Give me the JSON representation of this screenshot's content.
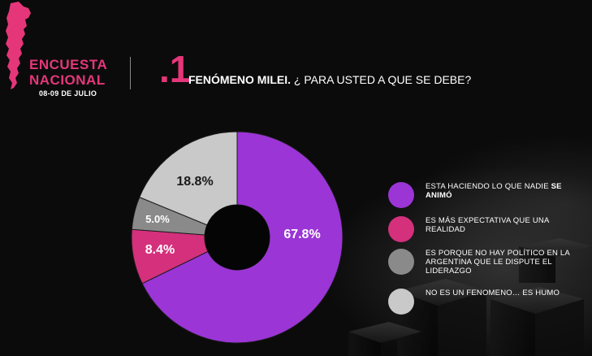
{
  "header": {
    "title_line1": "ENCUESTA",
    "title_line2": "NACIONAL",
    "date": "08-09 DE JULIO",
    "question_number": ".1",
    "question_bold": "FENÓMENO MILEI.",
    "question_text": " ¿ PARA USTED A QUE SE DEBE?"
  },
  "colors": {
    "accent": "#e5367a",
    "background": "#0b0b0b"
  },
  "chart_data": {
    "type": "pie",
    "donut": true,
    "categories": [
      "ESTA HACIENDO LO QUE NADIE SE ANIMÓ",
      "ES MÁS EXPECTATIVA QUE UNA REALIDAD",
      "ES PORQUE NO HAY POLÍTICO EN LA ARGENTINA QUE LE DISPUTE EL LIDERAZGO",
      "NO ES UN FENOMENO… ES HUMO"
    ],
    "values": [
      67.8,
      8.4,
      5.0,
      18.8
    ],
    "value_labels": [
      "67.8%",
      "8.4%",
      "5.0%",
      "18.8%"
    ],
    "colors": [
      "#9b35d6",
      "#d4307c",
      "#8a8a8a",
      "#c9c9c9"
    ],
    "label_colors": [
      "#ffffff",
      "#ffffff",
      "#ffffff",
      "#1a1a1a"
    ],
    "legend_placement": "right",
    "legend": [
      {
        "text": "ESTA HACIENDO LO QUE NADIE ",
        "bold": "SE ANIMÓ",
        "color": "#9b35d6"
      },
      {
        "text": "ES MÁS EXPECTATIVA QUE UNA REALIDAD",
        "bold": "",
        "color": "#d4307c"
      },
      {
        "text": "ES PORQUE NO HAY POLÍTICO EN LA ARGENTINA QUE LE DISPUTE EL LIDERAZGO",
        "bold": "",
        "color": "#8a8a8a"
      },
      {
        "text": "NO ES UN FENOMENO… ES HUMO",
        "bold": "",
        "color": "#c9c9c9"
      }
    ]
  }
}
